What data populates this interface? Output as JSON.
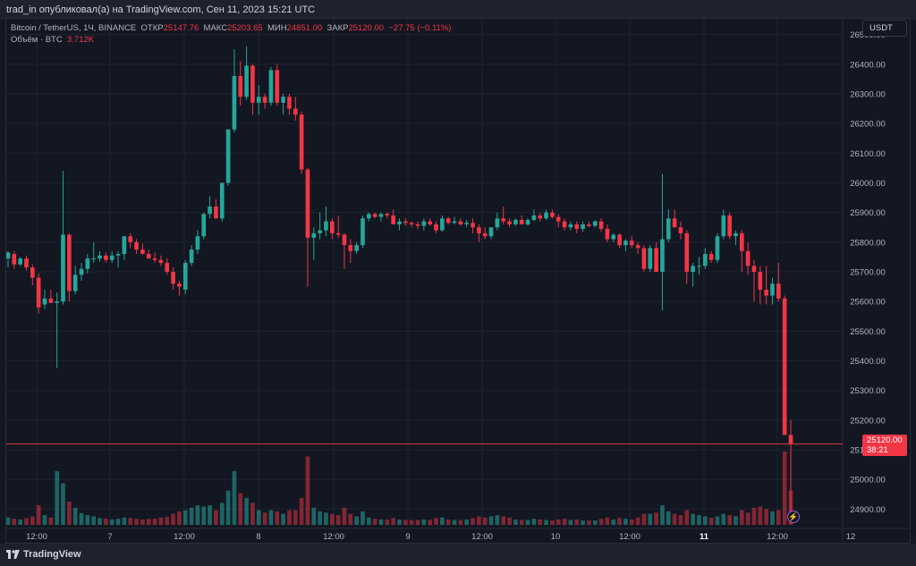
{
  "header": {
    "publish_line": "trad_in опубликовал(а) на TradingView.com, Сен 11, 2023 15:21 UTC"
  },
  "legend": {
    "symbol": "Bitcoin / TetherUS, 1Ч, BINANCE",
    "open_label": "ОТКР",
    "open_value": "25147.76",
    "high_label": "МАКС",
    "high_value": "25203.65",
    "low_label": "МИН",
    "low_value": "24851.00",
    "close_label": "ЗАКР",
    "close_value": "25120.00",
    "change": "−27.75 (−0.11%)",
    "volume_label": "Объём · BTC",
    "volume_value": "3.712K"
  },
  "currency_button": "USDT",
  "last_price": {
    "value": "25120.00",
    "countdown": "38:21"
  },
  "footer": {
    "brand": "TradingView"
  },
  "colors": {
    "up": "#26a69a",
    "down": "#f23645",
    "background": "#131722",
    "grid": "#1f2330"
  },
  "icons": {
    "replay": "lightning-icon",
    "logo": "tradingview-logo"
  },
  "chart_data": {
    "type": "candlestick",
    "price_axis": {
      "min": 24850,
      "max": 26550,
      "ticks": [
        "26500.00",
        "26400.00",
        "26300.00",
        "26200.00",
        "26100.00",
        "26000.00",
        "25900.00",
        "25800.00",
        "25700.00",
        "25600.00",
        "25500.00",
        "25400.00",
        "25300.00",
        "25200.00",
        "25100.00",
        "25000.00",
        "24900.00"
      ]
    },
    "time_axis": {
      "labels": [
        "12:00",
        "7",
        "12:00",
        "8",
        "12:00",
        "9",
        "12:00",
        "10",
        "12:00",
        "11",
        "12:00",
        "12"
      ],
      "bold": [
        false,
        false,
        false,
        false,
        false,
        false,
        false,
        false,
        false,
        true,
        false,
        false
      ]
    },
    "candles": [
      {
        "o": 25745,
        "h": 25770,
        "l": 25715,
        "c": 25765,
        "v": 30
      },
      {
        "o": 25760,
        "h": 25770,
        "l": 25710,
        "c": 25725,
        "v": 25
      },
      {
        "o": 25725,
        "h": 25750,
        "l": 25720,
        "c": 25745,
        "v": 22
      },
      {
        "o": 25745,
        "h": 25755,
        "l": 25705,
        "c": 25715,
        "v": 28
      },
      {
        "o": 25715,
        "h": 25725,
        "l": 25655,
        "c": 25680,
        "v": 35
      },
      {
        "o": 25680,
        "h": 25695,
        "l": 25560,
        "c": 25580,
        "v": 80
      },
      {
        "o": 25590,
        "h": 25640,
        "l": 25575,
        "c": 25610,
        "v": 40
      },
      {
        "o": 25610,
        "h": 25640,
        "l": 25595,
        "c": 25595,
        "v": 30
      },
      {
        "o": 25595,
        "h": 25630,
        "l": 25375,
        "c": 25600,
        "v": 220
      },
      {
        "o": 25600,
        "h": 26040,
        "l": 25590,
        "c": 25825,
        "v": 170
      },
      {
        "o": 25825,
        "h": 25830,
        "l": 25600,
        "c": 25635,
        "v": 95
      },
      {
        "o": 25635,
        "h": 25720,
        "l": 25625,
        "c": 25690,
        "v": 70
      },
      {
        "o": 25690,
        "h": 25730,
        "l": 25670,
        "c": 25710,
        "v": 48
      },
      {
        "o": 25710,
        "h": 25760,
        "l": 25695,
        "c": 25745,
        "v": 40
      },
      {
        "o": 25745,
        "h": 25800,
        "l": 25730,
        "c": 25745,
        "v": 35
      },
      {
        "o": 25745,
        "h": 25770,
        "l": 25735,
        "c": 25755,
        "v": 28
      },
      {
        "o": 25755,
        "h": 25765,
        "l": 25730,
        "c": 25740,
        "v": 25
      },
      {
        "o": 25740,
        "h": 25770,
        "l": 25730,
        "c": 25755,
        "v": 22
      },
      {
        "o": 25755,
        "h": 25770,
        "l": 25715,
        "c": 25760,
        "v": 25
      },
      {
        "o": 25760,
        "h": 25815,
        "l": 25740,
        "c": 25820,
        "v": 30
      },
      {
        "o": 25820,
        "h": 25830,
        "l": 25780,
        "c": 25800,
        "v": 28
      },
      {
        "o": 25800,
        "h": 25810,
        "l": 25760,
        "c": 25775,
        "v": 25
      },
      {
        "o": 25775,
        "h": 25795,
        "l": 25760,
        "c": 25760,
        "v": 22
      },
      {
        "o": 25760,
        "h": 25775,
        "l": 25745,
        "c": 25745,
        "v": 24
      },
      {
        "o": 25745,
        "h": 25765,
        "l": 25730,
        "c": 25740,
        "v": 25
      },
      {
        "o": 25740,
        "h": 25755,
        "l": 25720,
        "c": 25730,
        "v": 30
      },
      {
        "o": 25730,
        "h": 25745,
        "l": 25690,
        "c": 25700,
        "v": 32
      },
      {
        "o": 25700,
        "h": 25715,
        "l": 25640,
        "c": 25660,
        "v": 45
      },
      {
        "o": 25660,
        "h": 25670,
        "l": 25620,
        "c": 25650,
        "v": 55
      },
      {
        "o": 25640,
        "h": 25740,
        "l": 25625,
        "c": 25730,
        "v": 60
      },
      {
        "o": 25730,
        "h": 25790,
        "l": 25720,
        "c": 25775,
        "v": 70
      },
      {
        "o": 25775,
        "h": 25840,
        "l": 25760,
        "c": 25820,
        "v": 80
      },
      {
        "o": 25820,
        "h": 25900,
        "l": 25810,
        "c": 25895,
        "v": 75
      },
      {
        "o": 25895,
        "h": 25955,
        "l": 25880,
        "c": 25920,
        "v": 80
      },
      {
        "o": 25920,
        "h": 25945,
        "l": 25880,
        "c": 25880,
        "v": 60
      },
      {
        "o": 25880,
        "h": 26000,
        "l": 25870,
        "c": 26000,
        "v": 90
      },
      {
        "o": 26000,
        "h": 26180,
        "l": 25990,
        "c": 26180,
        "v": 140
      },
      {
        "o": 26180,
        "h": 26450,
        "l": 26170,
        "c": 26360,
        "v": 220
      },
      {
        "o": 26360,
        "h": 26410,
        "l": 26260,
        "c": 26290,
        "v": 130
      },
      {
        "o": 26290,
        "h": 26460,
        "l": 26280,
        "c": 26395,
        "v": 110
      },
      {
        "o": 26395,
        "h": 26400,
        "l": 26230,
        "c": 26270,
        "v": 90
      },
      {
        "o": 26270,
        "h": 26330,
        "l": 26230,
        "c": 26290,
        "v": 60
      },
      {
        "o": 26290,
        "h": 26300,
        "l": 26250,
        "c": 26270,
        "v": 50
      },
      {
        "o": 26270,
        "h": 26390,
        "l": 26260,
        "c": 26380,
        "v": 60
      },
      {
        "o": 26380,
        "h": 26400,
        "l": 26260,
        "c": 26270,
        "v": 55
      },
      {
        "o": 26270,
        "h": 26300,
        "l": 26230,
        "c": 26290,
        "v": 45
      },
      {
        "o": 26290,
        "h": 26300,
        "l": 26230,
        "c": 26250,
        "v": 60
      },
      {
        "o": 26250,
        "h": 26290,
        "l": 26210,
        "c": 26230,
        "v": 60
      },
      {
        "o": 26230,
        "h": 26240,
        "l": 26030,
        "c": 26045,
        "v": 110
      },
      {
        "o": 26045,
        "h": 26050,
        "l": 25650,
        "c": 25815,
        "v": 280
      },
      {
        "o": 25815,
        "h": 25850,
        "l": 25740,
        "c": 25830,
        "v": 70
      },
      {
        "o": 25830,
        "h": 25900,
        "l": 25810,
        "c": 25840,
        "v": 55
      },
      {
        "o": 25840,
        "h": 25920,
        "l": 25820,
        "c": 25870,
        "v": 50
      },
      {
        "o": 25870,
        "h": 25880,
        "l": 25810,
        "c": 25830,
        "v": 45
      },
      {
        "o": 25830,
        "h": 25890,
        "l": 25815,
        "c": 25825,
        "v": 40
      },
      {
        "o": 25825,
        "h": 25830,
        "l": 25710,
        "c": 25790,
        "v": 70
      },
      {
        "o": 25790,
        "h": 25810,
        "l": 25730,
        "c": 25770,
        "v": 45
      },
      {
        "o": 25770,
        "h": 25800,
        "l": 25760,
        "c": 25790,
        "v": 35
      },
      {
        "o": 25790,
        "h": 25890,
        "l": 25780,
        "c": 25880,
        "v": 55
      },
      {
        "o": 25880,
        "h": 25900,
        "l": 25870,
        "c": 25895,
        "v": 30
      },
      {
        "o": 25895,
        "h": 25900,
        "l": 25880,
        "c": 25885,
        "v": 25
      },
      {
        "o": 25885,
        "h": 25900,
        "l": 25870,
        "c": 25895,
        "v": 22
      },
      {
        "o": 25895,
        "h": 25900,
        "l": 25880,
        "c": 25890,
        "v": 22
      },
      {
        "o": 25890,
        "h": 25910,
        "l": 25870,
        "c": 25860,
        "v": 28
      },
      {
        "o": 25860,
        "h": 25880,
        "l": 25840,
        "c": 25870,
        "v": 22
      },
      {
        "o": 25870,
        "h": 25880,
        "l": 25855,
        "c": 25865,
        "v": 20
      },
      {
        "o": 25865,
        "h": 25870,
        "l": 25850,
        "c": 25860,
        "v": 20
      },
      {
        "o": 25860,
        "h": 25870,
        "l": 25845,
        "c": 25855,
        "v": 20
      },
      {
        "o": 25855,
        "h": 25880,
        "l": 25840,
        "c": 25870,
        "v": 22
      },
      {
        "o": 25870,
        "h": 25880,
        "l": 25855,
        "c": 25860,
        "v": 20
      },
      {
        "o": 25860,
        "h": 25870,
        "l": 25830,
        "c": 25840,
        "v": 28
      },
      {
        "o": 25840,
        "h": 25890,
        "l": 25835,
        "c": 25880,
        "v": 30
      },
      {
        "o": 25880,
        "h": 25885,
        "l": 25860,
        "c": 25865,
        "v": 22
      },
      {
        "o": 25865,
        "h": 25885,
        "l": 25860,
        "c": 25870,
        "v": 20
      },
      {
        "o": 25870,
        "h": 25880,
        "l": 25855,
        "c": 25860,
        "v": 20
      },
      {
        "o": 25860,
        "h": 25875,
        "l": 25850,
        "c": 25865,
        "v": 22
      },
      {
        "o": 25865,
        "h": 25880,
        "l": 25830,
        "c": 25850,
        "v": 28
      },
      {
        "o": 25850,
        "h": 25860,
        "l": 25800,
        "c": 25830,
        "v": 35
      },
      {
        "o": 25830,
        "h": 25850,
        "l": 25810,
        "c": 25820,
        "v": 30
      },
      {
        "o": 25820,
        "h": 25850,
        "l": 25810,
        "c": 25850,
        "v": 35
      },
      {
        "o": 25850,
        "h": 25900,
        "l": 25840,
        "c": 25880,
        "v": 40
      },
      {
        "o": 25880,
        "h": 25920,
        "l": 25860,
        "c": 25870,
        "v": 35
      },
      {
        "o": 25870,
        "h": 25880,
        "l": 25850,
        "c": 25860,
        "v": 30
      },
      {
        "o": 25860,
        "h": 25880,
        "l": 25855,
        "c": 25875,
        "v": 22
      },
      {
        "o": 25875,
        "h": 25890,
        "l": 25860,
        "c": 25860,
        "v": 20
      },
      {
        "o": 25860,
        "h": 25880,
        "l": 25855,
        "c": 25875,
        "v": 20
      },
      {
        "o": 25875,
        "h": 25910,
        "l": 25870,
        "c": 25890,
        "v": 25
      },
      {
        "o": 25890,
        "h": 25900,
        "l": 25870,
        "c": 25880,
        "v": 22
      },
      {
        "o": 25880,
        "h": 25910,
        "l": 25875,
        "c": 25900,
        "v": 20
      },
      {
        "o": 25900,
        "h": 25910,
        "l": 25880,
        "c": 25885,
        "v": 18
      },
      {
        "o": 25885,
        "h": 25895,
        "l": 25850,
        "c": 25870,
        "v": 22
      },
      {
        "o": 25870,
        "h": 25880,
        "l": 25840,
        "c": 25850,
        "v": 25
      },
      {
        "o": 25850,
        "h": 25870,
        "l": 25840,
        "c": 25860,
        "v": 20
      },
      {
        "o": 25860,
        "h": 25870,
        "l": 25830,
        "c": 25845,
        "v": 22
      },
      {
        "o": 25845,
        "h": 25870,
        "l": 25835,
        "c": 25860,
        "v": 18
      },
      {
        "o": 25860,
        "h": 25870,
        "l": 25850,
        "c": 25855,
        "v": 18
      },
      {
        "o": 25855,
        "h": 25875,
        "l": 25850,
        "c": 25870,
        "v": 18
      },
      {
        "o": 25870,
        "h": 25880,
        "l": 25835,
        "c": 25845,
        "v": 25
      },
      {
        "o": 25845,
        "h": 25860,
        "l": 25800,
        "c": 25810,
        "v": 30
      },
      {
        "o": 25810,
        "h": 25830,
        "l": 25800,
        "c": 25825,
        "v": 22
      },
      {
        "o": 25825,
        "h": 25830,
        "l": 25780,
        "c": 25790,
        "v": 28
      },
      {
        "o": 25790,
        "h": 25810,
        "l": 25770,
        "c": 25805,
        "v": 25
      },
      {
        "o": 25805,
        "h": 25820,
        "l": 25780,
        "c": 25790,
        "v": 22
      },
      {
        "o": 25790,
        "h": 25800,
        "l": 25760,
        "c": 25780,
        "v": 30
      },
      {
        "o": 25780,
        "h": 25790,
        "l": 25700,
        "c": 25710,
        "v": 45
      },
      {
        "o": 25710,
        "h": 25790,
        "l": 25700,
        "c": 25780,
        "v": 45
      },
      {
        "o": 25780,
        "h": 25800,
        "l": 25700,
        "c": 25700,
        "v": 50
      },
      {
        "o": 25700,
        "h": 26030,
        "l": 25570,
        "c": 25810,
        "v": 80
      },
      {
        "o": 25810,
        "h": 25910,
        "l": 25800,
        "c": 25880,
        "v": 55
      },
      {
        "o": 25880,
        "h": 25910,
        "l": 25850,
        "c": 25850,
        "v": 45
      },
      {
        "o": 25850,
        "h": 25870,
        "l": 25810,
        "c": 25830,
        "v": 40
      },
      {
        "o": 25830,
        "h": 25840,
        "l": 25660,
        "c": 25700,
        "v": 60
      },
      {
        "o": 25700,
        "h": 25730,
        "l": 25650,
        "c": 25720,
        "v": 45
      },
      {
        "o": 25720,
        "h": 25750,
        "l": 25690,
        "c": 25720,
        "v": 40
      },
      {
        "o": 25720,
        "h": 25780,
        "l": 25710,
        "c": 25760,
        "v": 35
      },
      {
        "o": 25760,
        "h": 25770,
        "l": 25730,
        "c": 25740,
        "v": 30
      },
      {
        "o": 25740,
        "h": 25830,
        "l": 25730,
        "c": 25820,
        "v": 35
      },
      {
        "o": 25820,
        "h": 25910,
        "l": 25810,
        "c": 25890,
        "v": 45
      },
      {
        "o": 25890,
        "h": 25900,
        "l": 25810,
        "c": 25820,
        "v": 40
      },
      {
        "o": 25820,
        "h": 25840,
        "l": 25790,
        "c": 25830,
        "v": 35
      },
      {
        "o": 25830,
        "h": 25840,
        "l": 25700,
        "c": 25770,
        "v": 60
      },
      {
        "o": 25770,
        "h": 25800,
        "l": 25690,
        "c": 25720,
        "v": 50
      },
      {
        "o": 25720,
        "h": 25740,
        "l": 25600,
        "c": 25700,
        "v": 70
      },
      {
        "o": 25700,
        "h": 25720,
        "l": 25590,
        "c": 25640,
        "v": 75
      },
      {
        "o": 25640,
        "h": 25720,
        "l": 25590,
        "c": 25620,
        "v": 65
      },
      {
        "o": 25620,
        "h": 25680,
        "l": 25590,
        "c": 25660,
        "v": 55
      },
      {
        "o": 25660,
        "h": 25730,
        "l": 25600,
        "c": 25610,
        "v": 60
      },
      {
        "o": 25610,
        "h": 25620,
        "l": 25150,
        "c": 25150,
        "v": 300
      },
      {
        "o": 25150,
        "h": 25200,
        "l": 24851,
        "c": 25120,
        "v": 140
      }
    ]
  }
}
